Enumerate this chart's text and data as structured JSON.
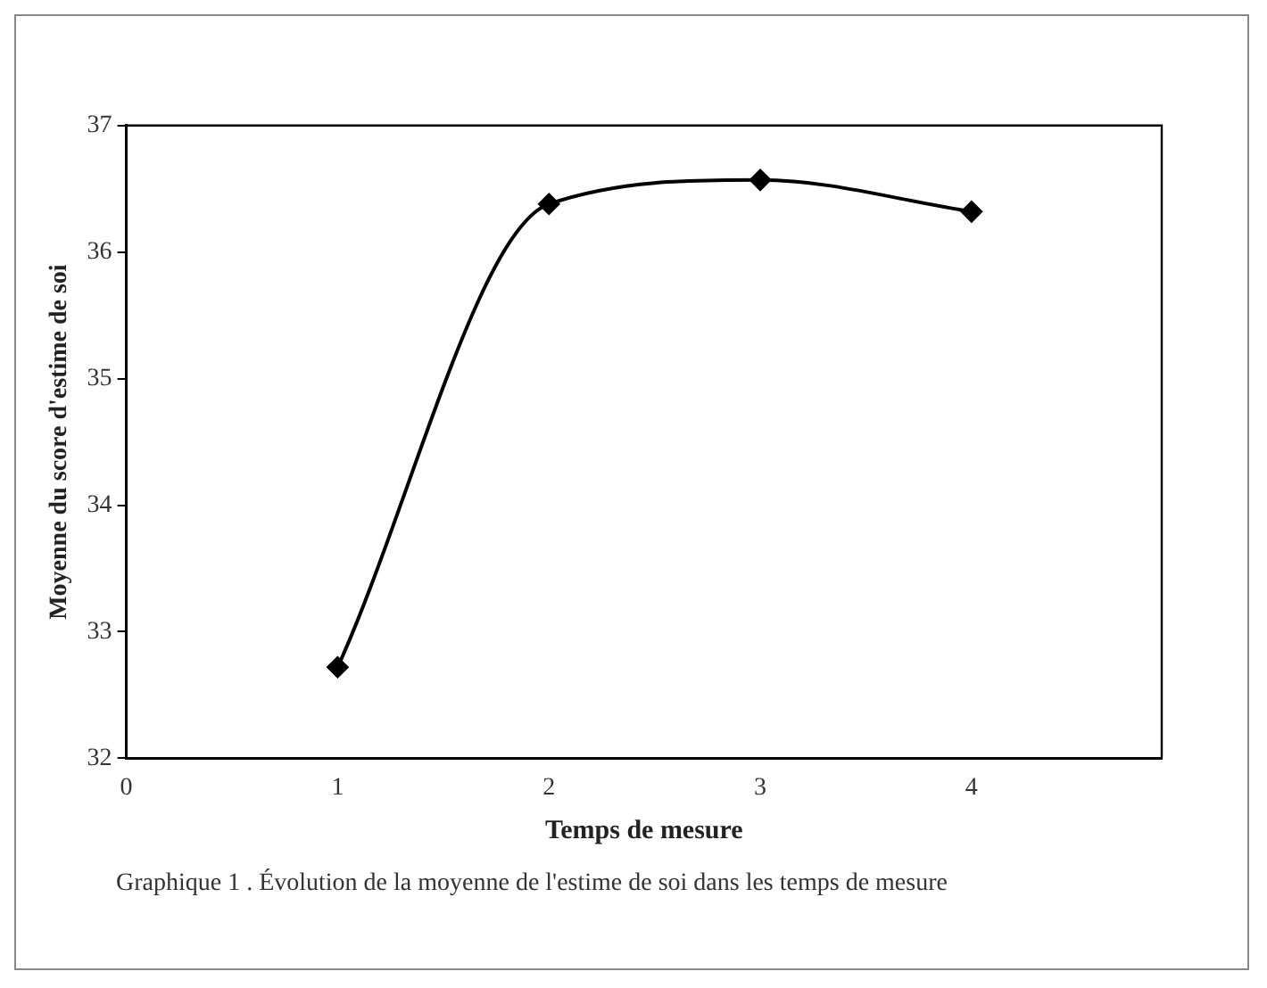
{
  "chart_data": {
    "type": "line",
    "xlabel": "Temps de mesure",
    "ylabel": "Moyenne du score d'estime de soi",
    "x": [
      1,
      2,
      3,
      4
    ],
    "series": [
      {
        "color": "#000000",
        "values": [
          32.72,
          36.38,
          36.57,
          36.32
        ]
      }
    ],
    "xlim": [
      0,
      4.9
    ],
    "xticks": [
      0,
      1,
      2,
      3,
      4
    ],
    "ylim": [
      32,
      37
    ],
    "yticks": [
      32,
      33,
      34,
      35,
      36,
      37
    ],
    "grid": false,
    "legend": false,
    "marker": "diamond",
    "line_style": "solid",
    "annotations": [
      "Graphique 1 . Évolution de la moyenne de l'estime de soi dans les temps de mesure"
    ]
  }
}
